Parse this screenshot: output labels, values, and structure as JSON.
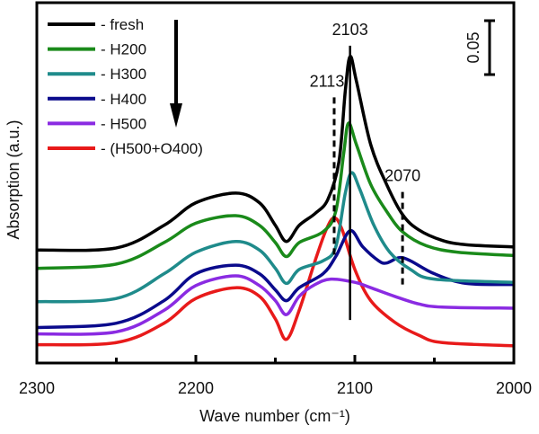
{
  "chart_data": {
    "type": "line",
    "title": "",
    "xlabel": "Wave number (cm⁻¹)",
    "ylabel": "Absorption (a.u.)",
    "xlim": [
      2300,
      2000
    ],
    "ylim": [
      0,
      0.335
    ],
    "x_ticks": [
      2300,
      2200,
      2100,
      2000
    ],
    "x_tick_labels": [
      "2300",
      "2200",
      "2100",
      "2000"
    ],
    "x_minor_ticks": [
      2250,
      2150,
      2050
    ],
    "grid": false,
    "legend_position": "top-left",
    "legend_arrow": "down",
    "scale_bar": {
      "value": 0.05,
      "label": "0.05"
    },
    "annotations": [
      {
        "label": "2103",
        "x": 2103,
        "style": "solid",
        "y_range": [
          0.04,
          0.295
        ]
      },
      {
        "label": "2113",
        "x": 2113,
        "style": "dashed",
        "y_range": [
          0.097,
          0.247
        ]
      },
      {
        "label": "2070",
        "x": 2070,
        "style": "dashed",
        "y_range": [
          0.073,
          0.159
        ]
      }
    ],
    "series": [
      {
        "name": "- fresh",
        "color": "#000000",
        "x": [
          2300,
          2250,
          2220,
          2200,
          2175,
          2160,
          2150,
          2143,
          2135,
          2125,
          2117,
          2110,
          2106,
          2103,
          2099,
          2090,
          2080,
          2070,
          2060,
          2045,
          2030,
          2000
        ],
        "y": [
          0.105,
          0.107,
          0.128,
          0.149,
          0.158,
          0.149,
          0.128,
          0.113,
          0.128,
          0.139,
          0.152,
          0.187,
          0.253,
          0.285,
          0.262,
          0.203,
          0.166,
          0.138,
          0.124,
          0.114,
          0.11,
          0.108
        ]
      },
      {
        "name": "- H200",
        "color": "#1a8a1a",
        "x": [
          2300,
          2250,
          2220,
          2200,
          2175,
          2160,
          2150,
          2143,
          2135,
          2120,
          2112,
          2107,
          2104,
          2099,
          2090,
          2080,
          2070,
          2055,
          2035,
          2000
        ],
        "y": [
          0.088,
          0.092,
          0.112,
          0.13,
          0.137,
          0.128,
          0.112,
          0.099,
          0.112,
          0.122,
          0.141,
          0.195,
          0.223,
          0.203,
          0.166,
          0.141,
          0.122,
          0.109,
          0.103,
          0.1
        ]
      },
      {
        "name": "- H300",
        "color": "#1f8b8b",
        "x": [
          2300,
          2250,
          2220,
          2200,
          2175,
          2160,
          2150,
          2143,
          2135,
          2120,
          2112,
          2106,
          2102,
          2097,
          2088,
          2078,
          2065,
          2050,
          2000
        ],
        "y": [
          0.057,
          0.06,
          0.083,
          0.103,
          0.113,
          0.105,
          0.088,
          0.074,
          0.087,
          0.095,
          0.108,
          0.158,
          0.177,
          0.162,
          0.128,
          0.103,
          0.087,
          0.078,
          0.075
        ]
      },
      {
        "name": "- H400",
        "color": "#0a0a8c",
        "x": [
          2300,
          2250,
          2220,
          2200,
          2175,
          2160,
          2150,
          2143,
          2135,
          2120,
          2112,
          2103,
          2095,
          2085,
          2080,
          2072,
          2065,
          2050,
          2030,
          2000
        ],
        "y": [
          0.033,
          0.037,
          0.058,
          0.083,
          0.091,
          0.083,
          0.068,
          0.058,
          0.07,
          0.083,
          0.099,
          0.123,
          0.108,
          0.095,
          0.093,
          0.098,
          0.095,
          0.083,
          0.074,
          0.073
        ]
      },
      {
        "name": "- H500",
        "color": "#8a2be2",
        "x": [
          2300,
          2250,
          2220,
          2200,
          2175,
          2160,
          2150,
          2143,
          2135,
          2125,
          2115,
          2100,
          2090,
          2075,
          2060,
          2045,
          2000
        ],
        "y": [
          0.027,
          0.029,
          0.049,
          0.072,
          0.081,
          0.072,
          0.058,
          0.045,
          0.062,
          0.073,
          0.078,
          0.075,
          0.07,
          0.062,
          0.055,
          0.052,
          0.051
        ]
      },
      {
        "name": "- (H500+O400)",
        "color": "#e81a1a",
        "x": [
          2300,
          2250,
          2220,
          2200,
          2175,
          2160,
          2150,
          2143,
          2135,
          2125,
          2118,
          2113,
          2108,
          2100,
          2090,
          2075,
          2060,
          2045,
          2000
        ],
        "y": [
          0.017,
          0.019,
          0.037,
          0.06,
          0.07,
          0.062,
          0.041,
          0.022,
          0.049,
          0.095,
          0.124,
          0.135,
          0.124,
          0.087,
          0.058,
          0.038,
          0.026,
          0.019,
          0.016
        ]
      }
    ]
  }
}
